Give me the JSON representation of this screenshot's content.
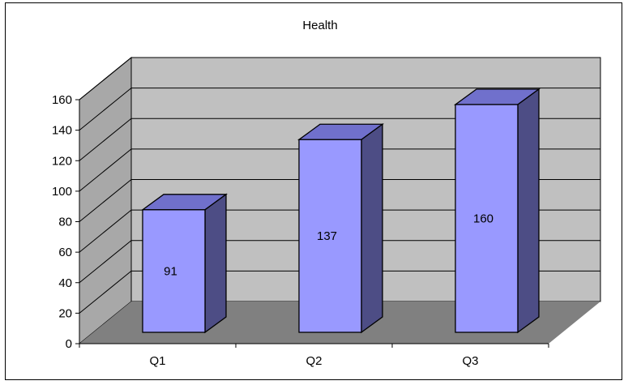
{
  "chart_data": {
    "type": "bar",
    "title": "Health",
    "categories": [
      "Q1",
      "Q2",
      "Q3"
    ],
    "series": [
      {
        "values": [
          91,
          137,
          160
        ]
      }
    ],
    "data_labels": [
      "91",
      "137",
      "160"
    ],
    "ylim": [
      0,
      160
    ],
    "yticks": [
      0,
      20,
      40,
      60,
      80,
      100,
      120,
      140,
      160
    ],
    "ytick_labels": [
      "0",
      "20",
      "40",
      "60",
      "80",
      "100",
      "120",
      "140",
      "160"
    ],
    "xlabel": "",
    "ylabel": "",
    "grid": true,
    "style": "3d",
    "colors": {
      "bar_front": "#9999FF",
      "bar_top": "#7070CC",
      "bar_side": "#4D4D85",
      "wall": "#C0C0C0",
      "floor": "#808080",
      "side_wall": "#A8A8A8"
    }
  }
}
